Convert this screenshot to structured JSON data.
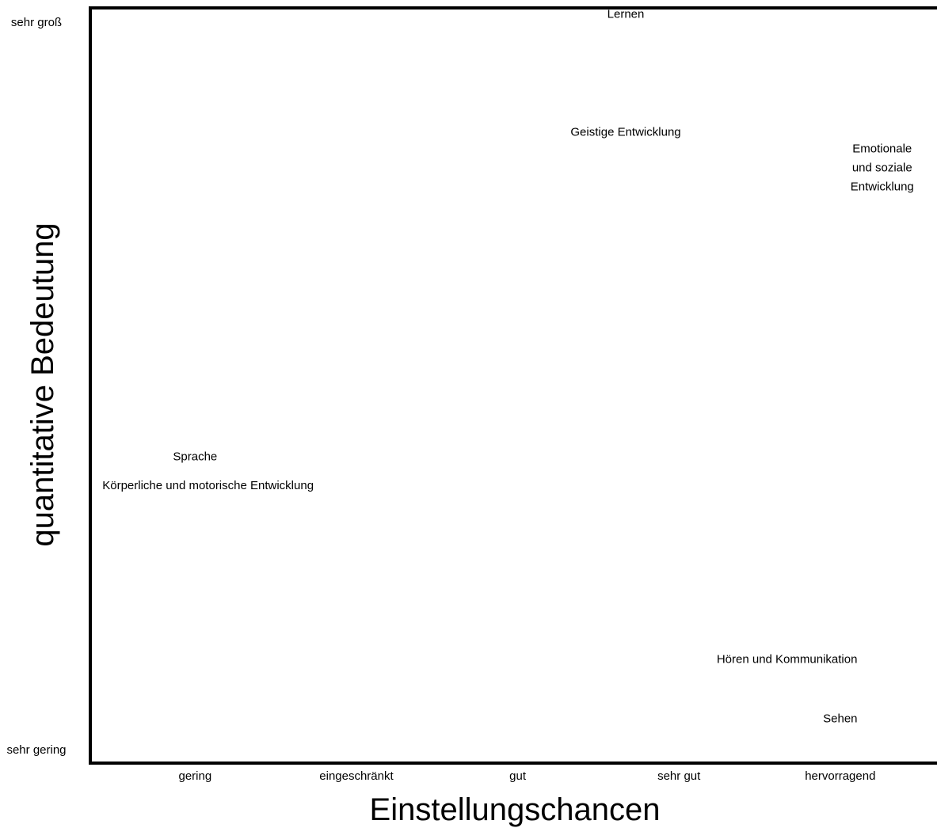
{
  "chart_data": {
    "type": "scatter",
    "title": "",
    "xlabel": "Einstellungschancen",
    "ylabel": "quantitative Bedeutung",
    "x_ticks": [
      "gering",
      "eingeschränkt",
      "gut",
      "sehr gut",
      "hervorragend"
    ],
    "y_ticks": [
      "sehr gering",
      "sehr groß"
    ],
    "xlim": [
      0.35,
      5.6
    ],
    "ylim": [
      0,
      100
    ],
    "grid": false,
    "points": [
      {
        "label": [
          "Lernen"
        ],
        "x": 3.67,
        "y": 99.2
      },
      {
        "label": [
          "Geistige Entwicklung"
        ],
        "x": 3.67,
        "y": 83.6
      },
      {
        "label": [
          "Emotionale",
          "und soziale",
          "Entwicklung"
        ],
        "x": 5.26,
        "y": 78.9
      },
      {
        "label": [
          "Sprache"
        ],
        "x": 1.0,
        "y": 40.6
      },
      {
        "label": [
          "Körperliche und motorische Entwicklung"
        ],
        "x": 1.08,
        "y": 36.8
      },
      {
        "label": [
          "Hören und Kommunikation"
        ],
        "x": 4.67,
        "y": 13.8
      },
      {
        "label": [
          "Sehen"
        ],
        "x": 5.0,
        "y": 5.9
      }
    ]
  }
}
